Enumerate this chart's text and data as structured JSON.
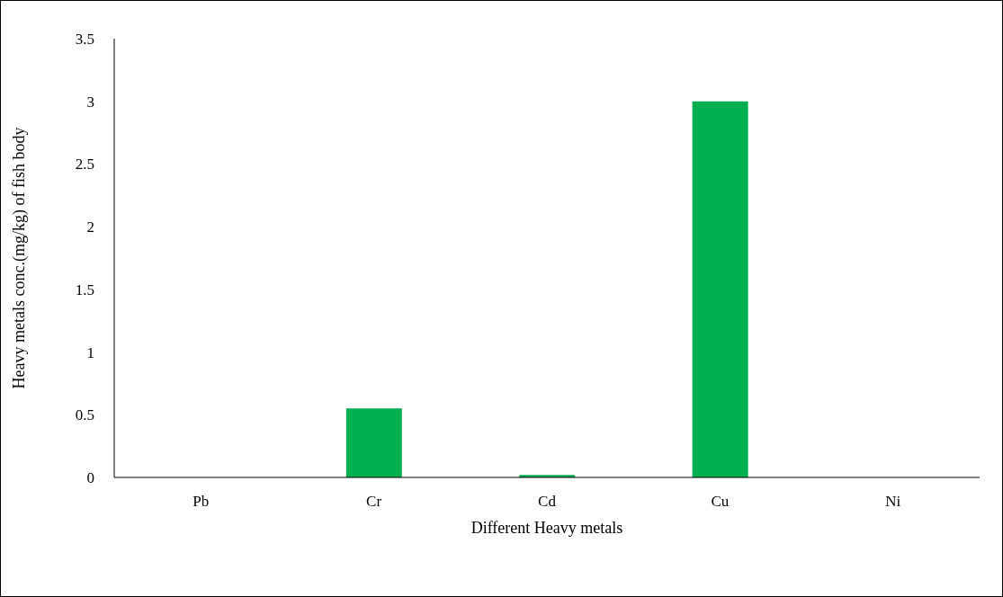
{
  "chart_data": {
    "type": "bar",
    "xlabel": "Different Heavy metals",
    "ylabel": "Heavy metals conc.(mg/kg) of fish body",
    "categories": [
      "Pb",
      "Cr",
      "Cd",
      "Cu",
      "Ni"
    ],
    "values": [
      0,
      0.55,
      0.02,
      3.0,
      0
    ],
    "color": "#00b050",
    "ylim": [
      0,
      3.5
    ],
    "yticks": [
      0,
      0.5,
      1,
      1.5,
      2,
      2.5,
      3,
      3.5
    ],
    "grid": false,
    "legend": false
  }
}
